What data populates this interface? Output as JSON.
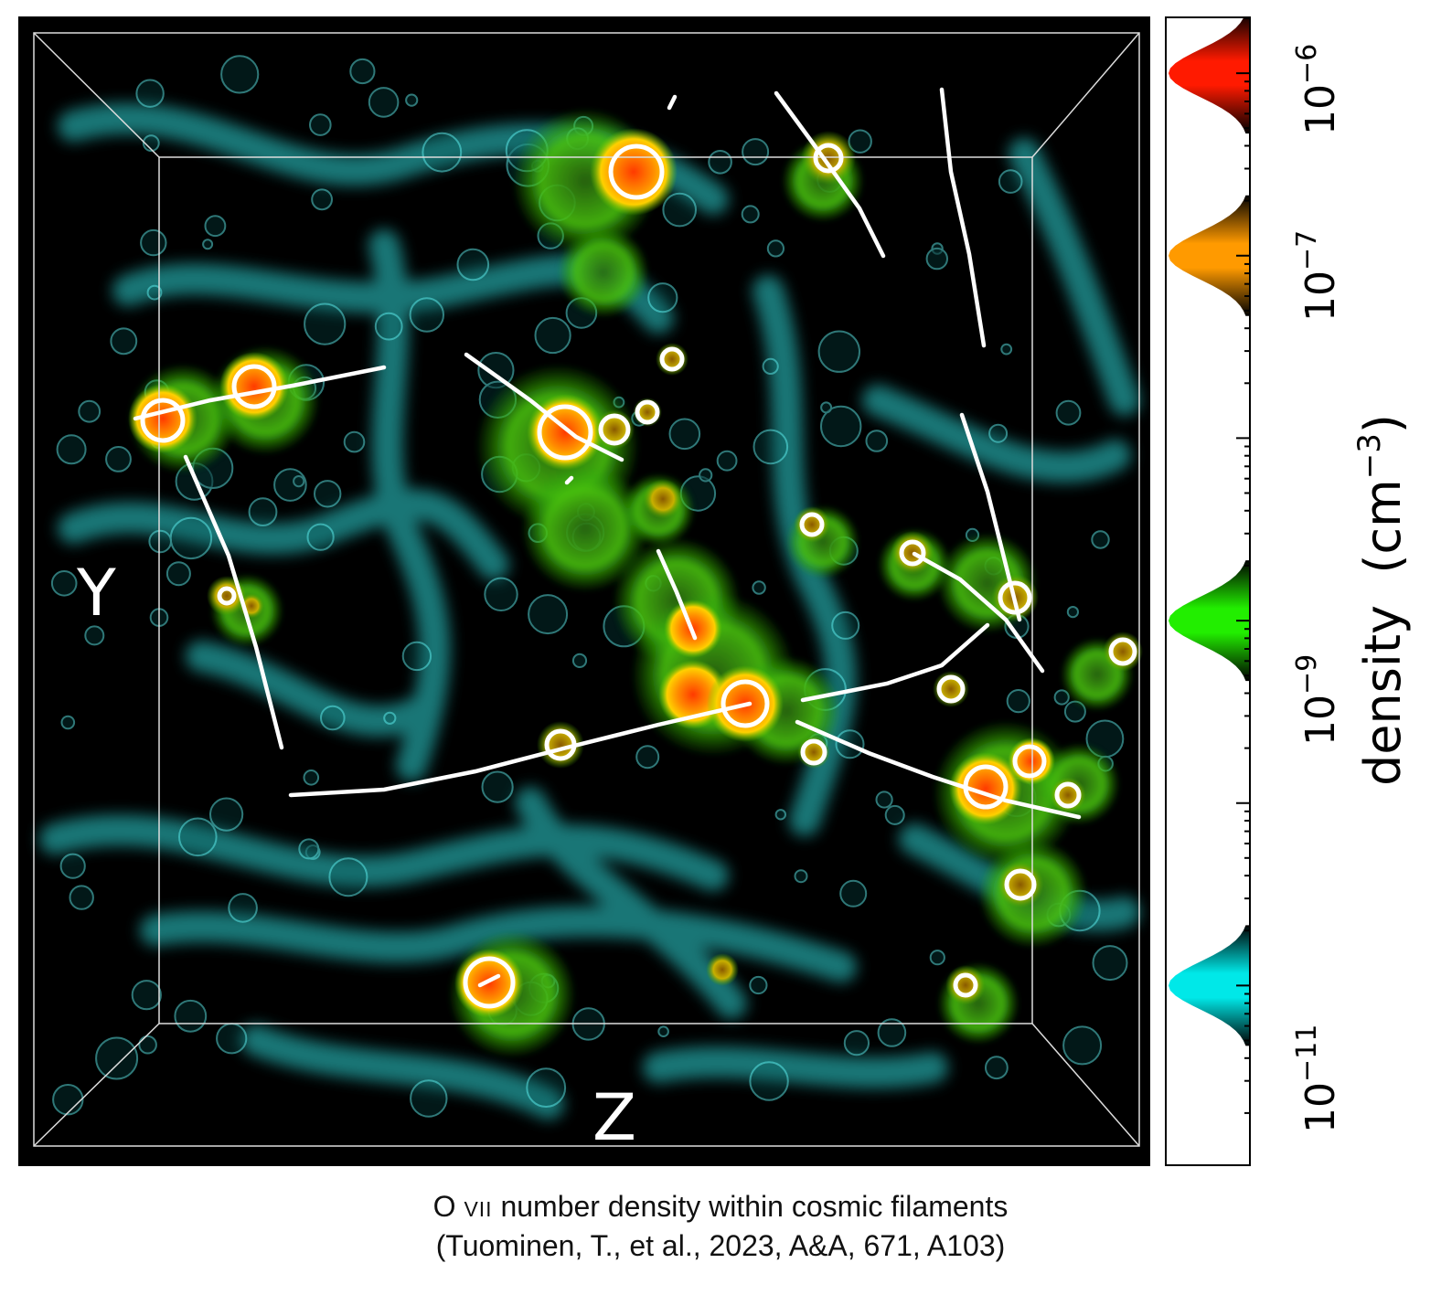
{
  "figure": {
    "axis_y_label": "Y",
    "axis_z_label": "Z"
  },
  "colorbar": {
    "title": "density",
    "unit_base": "(cm",
    "unit_exp": "−3",
    "unit_close": ")",
    "scale": "log",
    "range": [
      1e-12,
      2e-06
    ],
    "tick_labels": [
      {
        "base": "10",
        "exp": "−6",
        "value": 1e-06
      },
      {
        "base": "10",
        "exp": "−7",
        "value": 1e-07
      },
      {
        "base": "10",
        "exp": "−9",
        "value": 1e-09
      },
      {
        "base": "10",
        "exp": "−11",
        "value": 1e-11
      }
    ],
    "transfer_bands": [
      {
        "name": "red",
        "center": 1e-06,
        "color": "#ff1a00"
      },
      {
        "name": "orange",
        "center": 1e-07,
        "color": "#ff9a00"
      },
      {
        "name": "green",
        "center": 1e-09,
        "color": "#22ee00"
      },
      {
        "name": "cyan",
        "center": 1e-11,
        "color": "#00e8e8"
      }
    ]
  },
  "caption": {
    "line1_prefix": "O ",
    "line1_ion": "VII",
    "line1_rest": " number density within cosmic filaments",
    "line2": "(Tuominen, T., et al., 2023, A&A, 671, A103)"
  }
}
